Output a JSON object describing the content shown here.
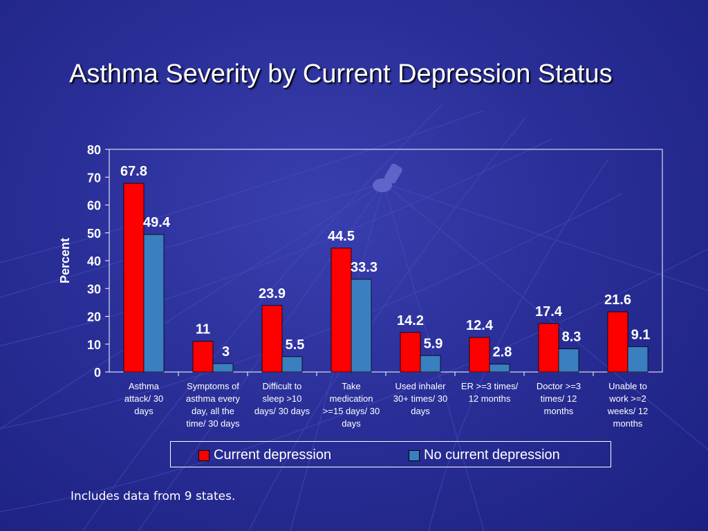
{
  "slide": {
    "title": "Asthma Severity by Current Depression Status",
    "footnote": "Includes data from 9 states."
  },
  "colors": {
    "current": "#ff0000",
    "no_current": "#3a7fc0",
    "axis": "#ffffff"
  },
  "chart_data": {
    "type": "bar",
    "ylabel": "Percent",
    "ylim": [
      0,
      80
    ],
    "yticks": [
      0,
      10,
      20,
      30,
      40,
      50,
      60,
      70,
      80
    ],
    "grid": false,
    "legend_position": "bottom",
    "categories": [
      [
        "Asthma",
        "attack/ 30",
        "days"
      ],
      [
        "Symptoms of",
        "asthma every",
        "day, all the",
        "time/ 30 days"
      ],
      [
        "Difficult to",
        "sleep >10",
        "days/ 30 days"
      ],
      [
        "Take",
        "medication",
        ">=15 days/ 30",
        "days"
      ],
      [
        "Used inhaler",
        "30+ times/ 30",
        "days"
      ],
      [
        "ER >=3 times/",
        "12 months"
      ],
      [
        "Doctor >=3",
        "times/ 12",
        "months"
      ],
      [
        "Unable to",
        "work >=2",
        "weeks/ 12",
        "months"
      ]
    ],
    "series": [
      {
        "name": "Current depression",
        "values": [
          67.8,
          11,
          23.9,
          44.5,
          14.2,
          12.4,
          17.4,
          21.6
        ],
        "labels": [
          "67.8",
          "11",
          "23.9",
          "44.5",
          "14.2",
          "12.4",
          "17.4",
          "21.6"
        ]
      },
      {
        "name": "No current depression",
        "values": [
          49.4,
          3,
          5.5,
          33.3,
          5.9,
          2.8,
          8.3,
          9.1
        ],
        "labels": [
          "49.4",
          "3",
          "5.5",
          "33.3",
          "5.9",
          "2.8",
          "8.3",
          "9.1"
        ]
      }
    ]
  }
}
